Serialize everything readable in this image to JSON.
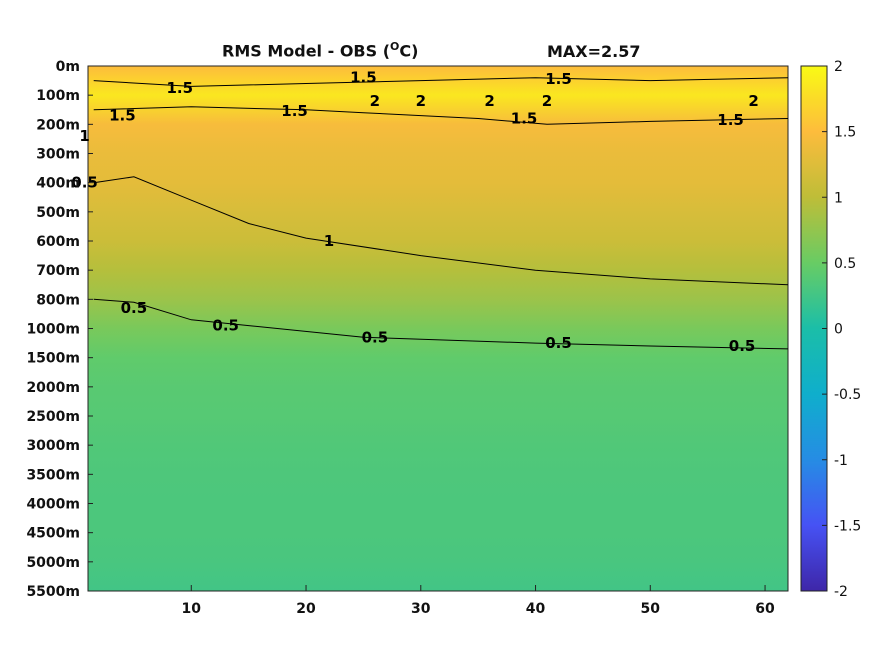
{
  "chart_data": {
    "type": "heatmap",
    "title": "RMS Model - OBS",
    "title_unit_letter": "C",
    "title_unit_superscript": "O",
    "title_max": "MAX=2.57",
    "y_tick_labels": [
      "0m",
      "100m",
      "200m",
      "300m",
      "400m",
      "500m",
      "600m",
      "700m",
      "800m",
      "1000m",
      "1500m",
      "2000m",
      "2500m",
      "3000m",
      "3500m",
      "4000m",
      "4500m",
      "5000m",
      "5500m"
    ],
    "x_ticks": [
      10,
      20,
      30,
      40,
      50,
      60
    ],
    "xlim": [
      1,
      62
    ],
    "colorbar": {
      "limits": [
        -2,
        2
      ],
      "ticks": [
        2,
        1.5,
        1,
        0.5,
        0,
        -0.5,
        -1,
        -1.5,
        -2
      ],
      "tick_labels": [
        "2",
        "1.5",
        "1",
        "0.5",
        "0",
        "-0.5",
        "-1",
        "-1.5",
        "-2"
      ],
      "colormap": "parula"
    },
    "field_profile": [
      {
        "depth": "0m",
        "value": 1.5
      },
      {
        "depth": "100m",
        "value": 1.85
      },
      {
        "depth": "200m",
        "value": 1.45
      },
      {
        "depth": "300m",
        "value": 1.35
      },
      {
        "depth": "400m",
        "value": 1.3
      },
      {
        "depth": "500m",
        "value": 1.2
      },
      {
        "depth": "600m",
        "value": 1.1
      },
      {
        "depth": "700m",
        "value": 0.95
      },
      {
        "depth": "800m",
        "value": 0.8
      },
      {
        "depth": "1000m",
        "value": 0.6
      },
      {
        "depth": "1500m",
        "value": 0.45
      },
      {
        "depth": "2000m",
        "value": 0.4
      },
      {
        "depth": "2500m",
        "value": 0.38
      },
      {
        "depth": "3000m",
        "value": 0.35
      },
      {
        "depth": "3500m",
        "value": 0.33
      },
      {
        "depth": "4000m",
        "value": 0.32
      },
      {
        "depth": "4500m",
        "value": 0.32
      },
      {
        "depth": "5000m",
        "value": 0.3
      },
      {
        "depth": "5500m",
        "value": 0.25
      }
    ],
    "contours": [
      {
        "level": 1.5,
        "label": "1.5",
        "points": [
          [
            1.5,
            0.5
          ],
          [
            10,
            0.7
          ],
          [
            20,
            0.6
          ],
          [
            30,
            0.5
          ],
          [
            40,
            0.4
          ],
          [
            50,
            0.5
          ],
          [
            62,
            0.4
          ]
        ]
      },
      {
        "level": 1.5,
        "label": "1.5",
        "points": [
          [
            1.5,
            1.5
          ],
          [
            10,
            1.4
          ],
          [
            20,
            1.5
          ],
          [
            25,
            1.6
          ],
          [
            35,
            1.8
          ],
          [
            41,
            2.0
          ],
          [
            50,
            1.9
          ],
          [
            62,
            1.8
          ]
        ]
      },
      {
        "level": 1,
        "label": "1",
        "points": [
          [
            1.5,
            4.0
          ],
          [
            5,
            3.8
          ],
          [
            10,
            4.6
          ],
          [
            15,
            5.4
          ],
          [
            20,
            5.9
          ],
          [
            30,
            6.5
          ],
          [
            40,
            7.0
          ],
          [
            50,
            7.3
          ],
          [
            62,
            7.5
          ]
        ]
      },
      {
        "level": 0.5,
        "label": "0.5",
        "points": [
          [
            1.5,
            8.0
          ],
          [
            5,
            8.1
          ],
          [
            10,
            8.7
          ],
          [
            15,
            8.9
          ],
          [
            25,
            9.3
          ],
          [
            40,
            9.5
          ],
          [
            50,
            9.6
          ],
          [
            62,
            9.7
          ]
        ]
      }
    ],
    "contour_labels": [
      {
        "text": "1.5",
        "x": 9,
        "y": 0.75
      },
      {
        "text": "1.5",
        "x": 25,
        "y": 0.4
      },
      {
        "text": "1.5",
        "x": 42,
        "y": 0.45
      },
      {
        "text": "2",
        "x": 26,
        "y": 1.2
      },
      {
        "text": "2",
        "x": 30,
        "y": 1.2
      },
      {
        "text": "2",
        "x": 36,
        "y": 1.2
      },
      {
        "text": "2",
        "x": 41,
        "y": 1.2
      },
      {
        "text": "2",
        "x": 59,
        "y": 1.2
      },
      {
        "text": "1.5",
        "x": 4,
        "y": 1.7
      },
      {
        "text": "1.5",
        "x": 19,
        "y": 1.55
      },
      {
        "text": "1.5",
        "x": 39,
        "y": 1.8
      },
      {
        "text": "1.5",
        "x": 57,
        "y": 1.85
      },
      {
        "text": "1",
        "x": 0.7,
        "y": 2.4
      },
      {
        "text": "0.5",
        "x": 0.7,
        "y": 4.0
      },
      {
        "text": "1",
        "x": 22,
        "y": 6.0
      },
      {
        "text": "0.5",
        "x": 5,
        "y": 8.3
      },
      {
        "text": "0.5",
        "x": 13,
        "y": 8.9
      },
      {
        "text": "0.5",
        "x": 26,
        "y": 9.3
      },
      {
        "text": "0.5",
        "x": 42,
        "y": 9.5
      },
      {
        "text": "0.5",
        "x": 58,
        "y": 9.6
      }
    ]
  }
}
